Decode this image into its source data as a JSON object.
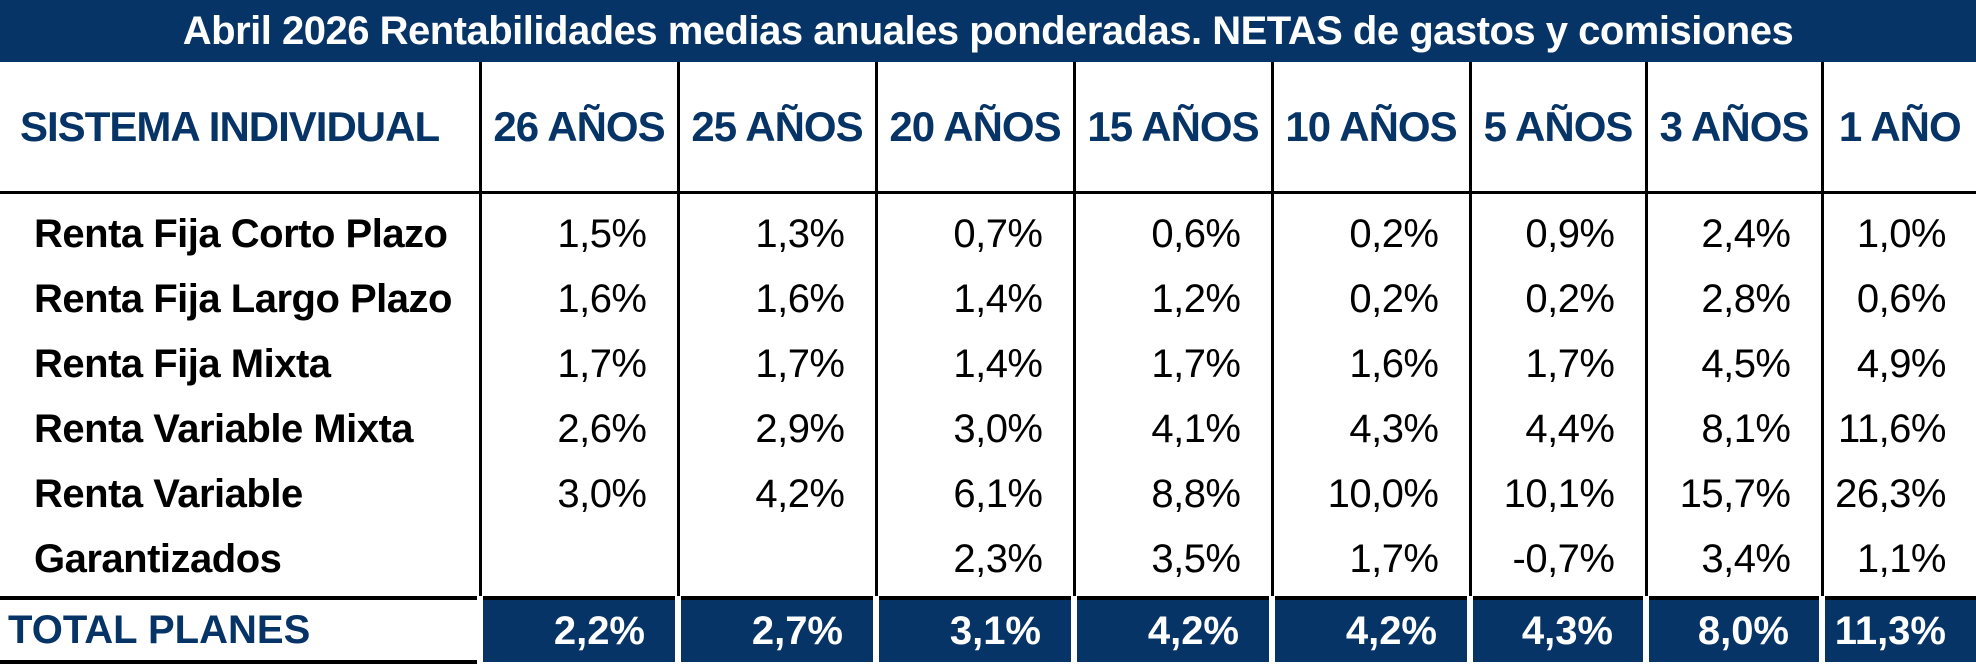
{
  "title": "Abril 2026 Rentabilidades medias anuales ponderadas. NETAS de gastos y comisiones",
  "header": {
    "label": "SISTEMA INDIVIDUAL",
    "columns": [
      "26 AÑOS",
      "25 AÑOS",
      "20 AÑOS",
      "15 AÑOS",
      "10 AÑOS",
      "5 AÑOS",
      "3 AÑOS",
      "1 AÑO"
    ]
  },
  "rows": [
    {
      "label": "Renta Fija Corto Plazo",
      "values": [
        "1,5%",
        "1,3%",
        "0,7%",
        "0,6%",
        "0,2%",
        "0,9%",
        "2,4%",
        "1,0%"
      ]
    },
    {
      "label": "Renta Fija Largo Plazo",
      "values": [
        "1,6%",
        "1,6%",
        "1,4%",
        "1,2%",
        "0,2%",
        "0,2%",
        "2,8%",
        "0,6%"
      ]
    },
    {
      "label": "Renta Fija Mixta",
      "values": [
        "1,7%",
        "1,7%",
        "1,4%",
        "1,7%",
        "1,6%",
        "1,7%",
        "4,5%",
        "4,9%"
      ]
    },
    {
      "label": "Renta Variable Mixta",
      "values": [
        "2,6%",
        "2,9%",
        "3,0%",
        "4,1%",
        "4,3%",
        "4,4%",
        "8,1%",
        "11,6%"
      ]
    },
    {
      "label": "Renta Variable",
      "values": [
        "3,0%",
        "4,2%",
        "6,1%",
        "8,8%",
        "10,0%",
        "10,1%",
        "15,7%",
        "26,3%"
      ]
    },
    {
      "label": "Garantizados",
      "values": [
        "",
        "",
        "2,3%",
        "3,5%",
        "1,7%",
        "-0,7%",
        "3,4%",
        "1,1%"
      ]
    }
  ],
  "total": {
    "label": "TOTAL PLANES",
    "values": [
      "2,2%",
      "2,7%",
      "3,1%",
      "4,2%",
      "4,2%",
      "4,3%",
      "8,0%",
      "11,3%"
    ]
  },
  "colors": {
    "navy": "#063467",
    "text": "#000000",
    "background": "#ffffff"
  }
}
